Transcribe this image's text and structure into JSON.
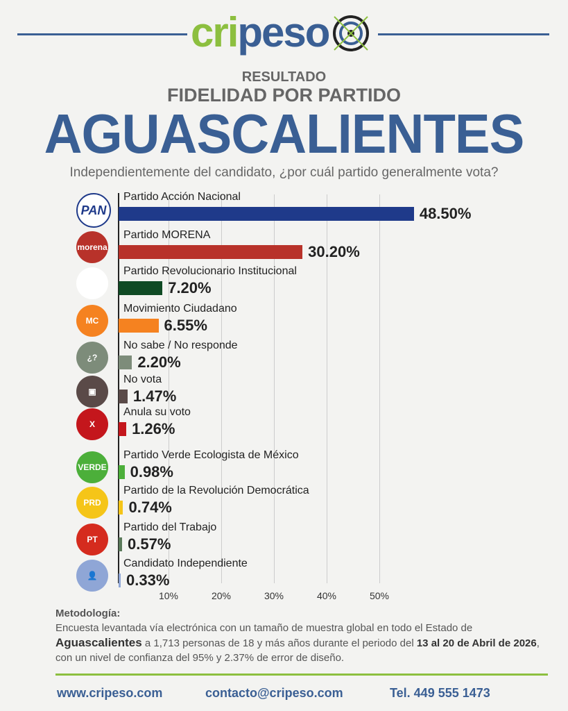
{
  "header": {
    "logo_text_green": "cri",
    "logo_text_blue": "peso",
    "subtitle1": "RESULTADO",
    "subtitle2": "FIDELIDAD POR PARTIDO",
    "state": "AGUASCALIENTES",
    "question": "Independientemente del candidato, ¿por cuál partido generalmente vota?"
  },
  "chart_data": {
    "type": "bar",
    "orientation": "horizontal",
    "title": "FIDELIDAD POR PARTIDO",
    "categories": [
      "Partido Acción Nacional",
      "Partido MORENA",
      "Partido Revolucionario Institucional",
      "Movimiento Ciudadano",
      "No sabe / No responde",
      "No vota",
      "Anula su voto",
      "Partido Verde Ecologista de México",
      "Partido de la Revolución Democrática",
      "Partido del Trabajo",
      "Candidato Independiente"
    ],
    "values": [
      48.5,
      30.2,
      7.2,
      6.55,
      2.2,
      1.47,
      1.26,
      0.98,
      0.74,
      0.57,
      0.33
    ],
    "value_labels": [
      "48.50%",
      "30.20%",
      "7.20%",
      "6.55%",
      "2.20%",
      "1.47%",
      "1.26%",
      "0.98%",
      "0.74%",
      "0.57%",
      "0.33%"
    ],
    "colors": [
      "#1f3a8a",
      "#b8322a",
      "#0f4a24",
      "#f58220",
      "#7d8c7a",
      "#5a4a48",
      "#c4161c",
      "#4caf3a",
      "#f5c518",
      "#5a7a5a",
      "#8fa6d6"
    ],
    "icons": [
      "PAN",
      "morena",
      "PRI",
      "MC",
      "¿?",
      "▣",
      "X",
      "VERDE",
      "PRD",
      "PT",
      "👤"
    ],
    "icon_colors": [
      "#ffffff",
      "#b8322a",
      "#ffffff",
      "#f58220",
      "#7d8c7a",
      "#5a4a48",
      "#c4161c",
      "#4caf3a",
      "#f5c518",
      "#d52b1e",
      "#8fa6d6"
    ],
    "xticks": [
      "10%",
      "20%",
      "30%",
      "40%",
      "50%"
    ],
    "xtick_values": [
      10,
      20,
      30,
      40,
      50
    ],
    "xlim": [
      0,
      50
    ],
    "grid": true
  },
  "methodology": {
    "title": "Metodología:",
    "p1": "Encuesta levantada vía electrónica con un tamaño de muestra global en todo el Estado de ",
    "state": "Aguascalientes",
    "p2": " a 1,713 personas de 18 y más años durante el periodo del ",
    "dates1": "13 al 20 de Abril de 2026",
    "p3": ", con un nivel de confianza del 95% y 2.37% de error de diseño."
  },
  "footer": {
    "web": "www.cripeso.com",
    "email": "contacto@cripeso.com",
    "phone": "Tel. 449 555 1473"
  }
}
